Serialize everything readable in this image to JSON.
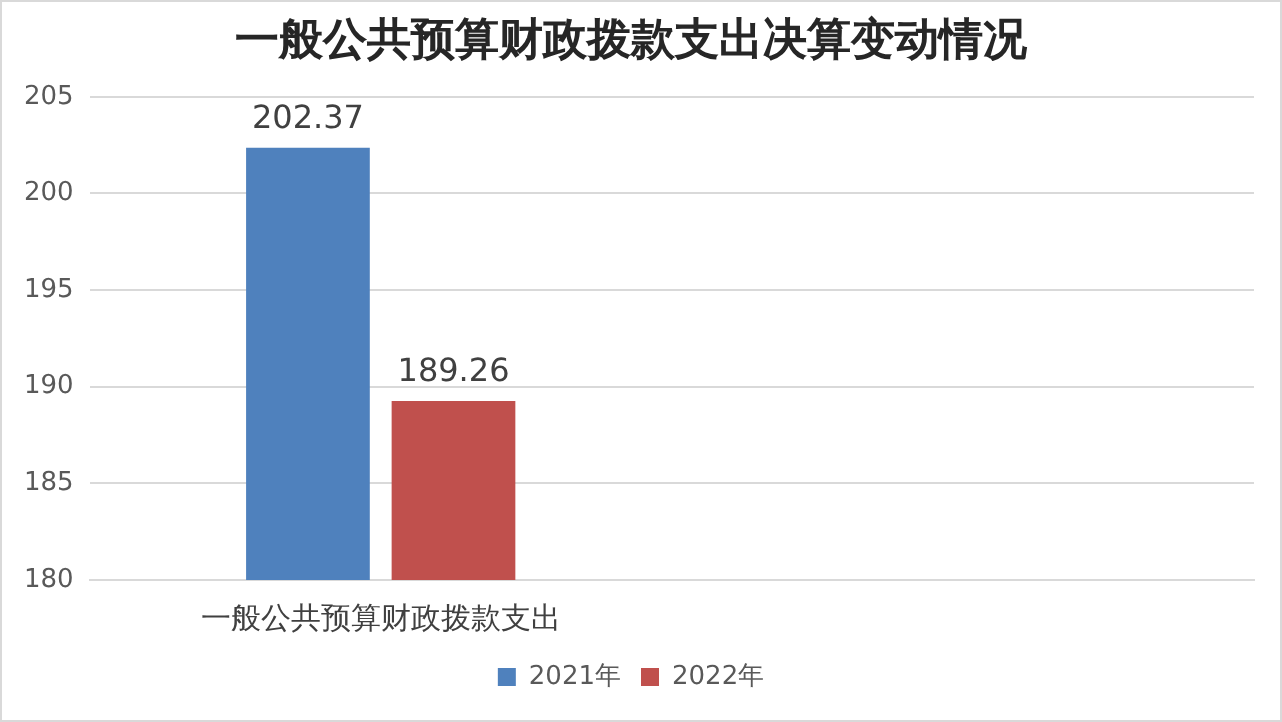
{
  "chart_data": {
    "type": "bar",
    "title": "一般公共预算财政拨款支出决算变动情况",
    "categories": [
      "一般公共预算财政拨款支出",
      null
    ],
    "series": [
      {
        "name": "2021年",
        "color": "#4f81bd",
        "values": [
          202.37,
          null
        ]
      },
      {
        "name": "2022年",
        "color": "#c0504d",
        "values": [
          189.26,
          null
        ]
      }
    ],
    "ylim": [
      180,
      205
    ],
    "yticks": [
      180,
      185,
      190,
      195,
      200,
      205
    ],
    "grid": "y",
    "legend": "bottom",
    "data_labels": true
  }
}
